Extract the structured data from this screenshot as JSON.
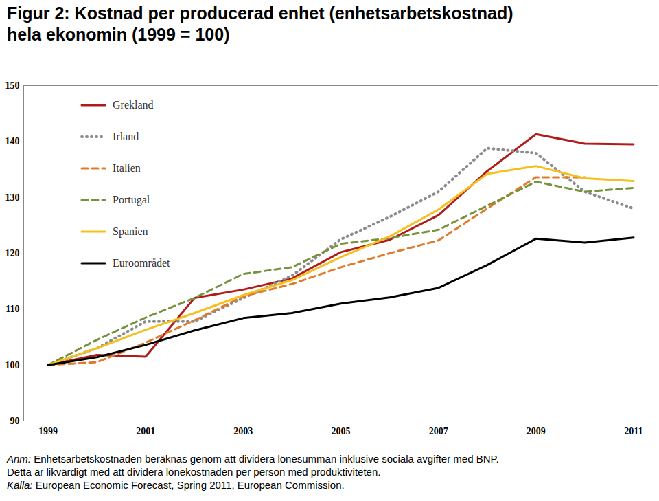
{
  "chart_data": {
    "type": "line",
    "title": "Figur 2: Kostnad per producerad enhet (enhetsarbetskostnad)\nhela ekonomin (1999 = 100)",
    "x": [
      1999,
      2000,
      2001,
      2002,
      2003,
      2004,
      2005,
      2006,
      2007,
      2008,
      2009,
      2010,
      2011
    ],
    "series": [
      {
        "name": "Grekland",
        "color": "#b01c1c",
        "line_style": "solid",
        "values": [
          100,
          101.8,
          101.5,
          112,
          113.5,
          115.5,
          120.2,
          122.4,
          126.8,
          134.7,
          141.3,
          139.6,
          139.5
        ]
      },
      {
        "name": "Irland",
        "color": "#8c8c8c",
        "line_style": "dotted",
        "values": [
          100,
          103,
          107.8,
          107.8,
          112,
          116,
          122.5,
          126.5,
          131,
          138.8,
          137.9,
          131,
          128
        ]
      },
      {
        "name": "Italien",
        "color": "#e07b2a",
        "line_style": "dashed",
        "values": [
          100,
          100.5,
          104,
          108,
          112.3,
          114.5,
          117.5,
          120,
          122.3,
          128,
          133.6,
          133.6,
          null
        ]
      },
      {
        "name": "Portugal",
        "color": "#76923c",
        "line_style": "dashed",
        "values": [
          100,
          104.5,
          108.5,
          112,
          116.3,
          117.5,
          121.7,
          122.7,
          124.2,
          128.5,
          132.8,
          131,
          131.7
        ]
      },
      {
        "name": "Spanien",
        "color": "#f5bf1e",
        "line_style": "solid",
        "values": [
          100,
          103,
          106.3,
          109.3,
          112.5,
          115.2,
          119.3,
          123,
          127.8,
          134.2,
          135.6,
          133.4,
          132.9
        ]
      },
      {
        "name": "Euroområdet",
        "color": "#000000",
        "line_style": "solid",
        "values": [
          100,
          101.4,
          103.6,
          106.2,
          108.4,
          109.3,
          111,
          112.1,
          113.8,
          117.9,
          122.6,
          121.9,
          122.8
        ]
      }
    ],
    "xlim": [
      1998.5,
      2011.5
    ],
    "xticks": [
      1999,
      2001,
      2003,
      2005,
      2007,
      2009,
      2011
    ],
    "ylim": [
      90,
      150
    ],
    "yticks": [
      90,
      100,
      110,
      120,
      130,
      140,
      150
    ],
    "grid": false,
    "legend": "top-left",
    "annotations": [
      "Anm: Enhetsarbetskostnaden beräknas genom att dividera lönesumman inklusive sociala avgifter med BNP.",
      "Detta är likvärdigt med att dividera lönekostnaden per person med produktiviteten.",
      "Källa: European Economic Forecast, Spring 2011, European Commission."
    ]
  }
}
